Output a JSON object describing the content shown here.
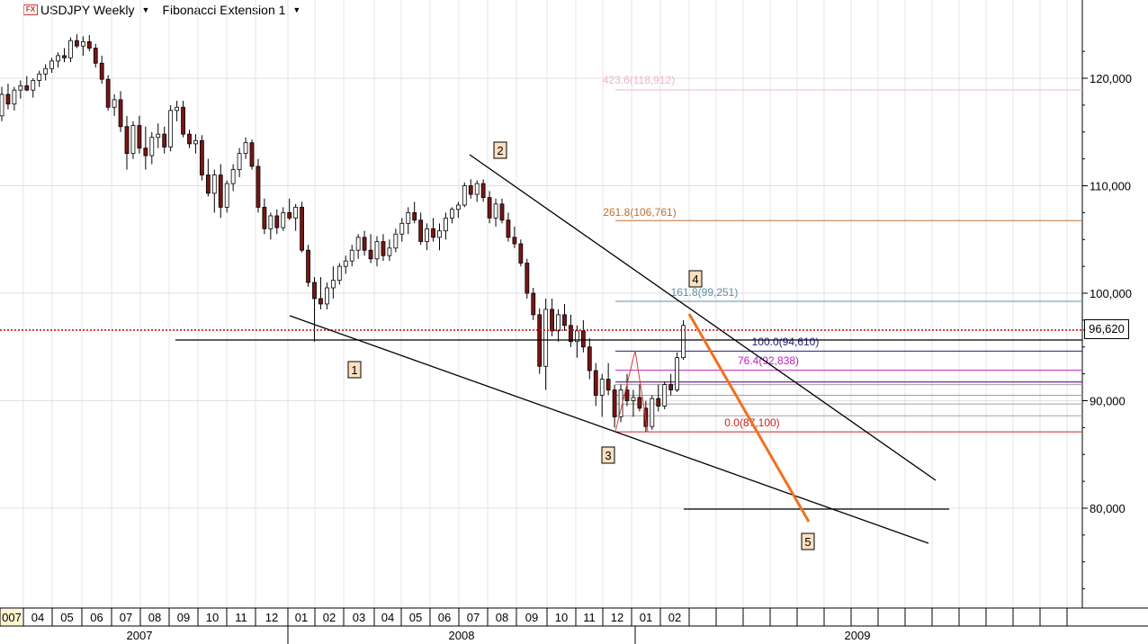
{
  "header": {
    "symbol_icon": "fx-icon",
    "symbol": "USDJPY Weekly",
    "indicator": "Fibonacci Extension 1"
  },
  "current_price": "96,620",
  "chart_data": {
    "type": "candlestick",
    "y_axis": {
      "ticks": [
        "120,000",
        "110,000",
        "100,000",
        "90,000",
        "80,000"
      ],
      "tick_values": [
        120,
        110,
        100,
        90,
        80
      ],
      "ylim": [
        70,
        125
      ]
    },
    "x_axis": {
      "months": [
        "007",
        "04",
        "05",
        "06",
        "07",
        "08",
        "09",
        "10",
        "11",
        "12",
        "01",
        "02",
        "03",
        "04",
        "05",
        "06",
        "07",
        "08",
        "09",
        "10",
        "11",
        "12",
        "01",
        "02"
      ],
      "years": [
        "2007",
        "2008",
        "2009"
      ]
    },
    "fib_levels": [
      {
        "label": "423.6(118,912)",
        "value": 118.912,
        "color": "#f4b4c8"
      },
      {
        "label": "261.8(106,761)",
        "value": 106.761,
        "color": "#c07030"
      },
      {
        "label": "161.8(99,251)",
        "value": 99.251,
        "color": "#6090a0"
      },
      {
        "label": "100.0(94,610)",
        "value": 94.61,
        "color": "#202080"
      },
      {
        "label": "76.4(92,838)",
        "value": 92.838,
        "color": "#c020c0"
      },
      {
        "label": "0.0(87,100)",
        "value": 87.1,
        "color": "#d02020"
      }
    ],
    "wave_labels": [
      "1",
      "2",
      "3",
      "4",
      "5"
    ],
    "candles": [
      [
        116.5,
        119.2,
        116.0,
        118.5
      ],
      [
        118.5,
        119.5,
        117.1,
        117.6
      ],
      [
        117.6,
        119.2,
        117.0,
        118.9
      ],
      [
        118.9,
        119.8,
        118.1,
        119.3
      ],
      [
        119.3,
        120.2,
        118.8,
        118.9
      ],
      [
        118.9,
        120.0,
        118.2,
        119.8
      ],
      [
        119.8,
        120.7,
        119.2,
        120.4
      ],
      [
        120.4,
        121.3,
        119.8,
        120.9
      ],
      [
        120.9,
        121.9,
        120.5,
        121.6
      ],
      [
        121.6,
        122.4,
        121.0,
        122.1
      ],
      [
        122.1,
        122.8,
        121.5,
        121.9
      ],
      [
        121.9,
        123.8,
        121.5,
        123.5
      ],
      [
        123.5,
        124.1,
        122.8,
        123.0
      ],
      [
        123.0,
        123.9,
        122.1,
        123.4
      ],
      [
        123.4,
        124.0,
        122.5,
        122.8
      ],
      [
        122.8,
        123.2,
        121.0,
        121.4
      ],
      [
        121.4,
        122.1,
        119.5,
        119.9
      ],
      [
        119.9,
        120.3,
        117.0,
        117.3
      ],
      [
        117.3,
        118.5,
        116.5,
        118.0
      ],
      [
        118.0,
        118.8,
        115.0,
        115.5
      ],
      [
        115.5,
        116.5,
        111.5,
        113.0
      ],
      [
        113.0,
        116.0,
        112.5,
        115.6
      ],
      [
        115.6,
        116.5,
        113.0,
        113.5
      ],
      [
        113.5,
        115.5,
        111.5,
        112.8
      ],
      [
        112.8,
        115.0,
        112.0,
        114.5
      ],
      [
        114.5,
        115.8,
        113.5,
        114.8
      ],
      [
        114.8,
        115.5,
        113.0,
        113.6
      ],
      [
        113.6,
        117.5,
        113.2,
        117.0
      ],
      [
        117.0,
        117.9,
        116.0,
        117.3
      ],
      [
        117.3,
        117.9,
        114.5,
        114.8
      ],
      [
        114.8,
        115.2,
        113.5,
        113.9
      ],
      [
        113.9,
        114.8,
        113.0,
        114.2
      ],
      [
        114.2,
        114.7,
        110.5,
        111.0
      ],
      [
        111.0,
        112.5,
        109.0,
        109.3
      ],
      [
        109.3,
        111.5,
        107.5,
        111.0
      ],
      [
        111.0,
        112.0,
        107.0,
        108.0
      ],
      [
        108.0,
        110.5,
        107.5,
        110.2
      ],
      [
        110.2,
        112.0,
        109.5,
        111.5
      ],
      [
        111.5,
        113.5,
        110.8,
        113.0
      ],
      [
        113.0,
        114.5,
        112.5,
        114.0
      ],
      [
        114.0,
        114.3,
        111.5,
        111.8
      ],
      [
        111.8,
        112.5,
        107.5,
        108.0
      ],
      [
        108.0,
        108.8,
        105.5,
        106.0
      ],
      [
        106.0,
        107.5,
        105.0,
        107.2
      ],
      [
        107.2,
        107.8,
        105.5,
        106.1
      ],
      [
        106.1,
        108.0,
        105.8,
        107.5
      ],
      [
        107.5,
        108.8,
        106.8,
        107.0
      ],
      [
        107.0,
        108.3,
        105.8,
        108.0
      ],
      [
        108.0,
        108.5,
        103.8,
        104.0
      ],
      [
        104.0,
        104.5,
        100.6,
        101.0
      ],
      [
        101.0,
        101.5,
        95.5,
        99.5
      ],
      [
        99.5,
        101.5,
        98.5,
        99.0
      ],
      [
        99.0,
        101.0,
        98.5,
        100.5
      ],
      [
        100.5,
        102.5,
        99.5,
        101.2
      ],
      [
        101.2,
        102.8,
        100.8,
        102.5
      ],
      [
        102.5,
        103.5,
        101.8,
        103.0
      ],
      [
        103.0,
        104.5,
        102.5,
        104.0
      ],
      [
        104.0,
        105.5,
        103.2,
        105.2
      ],
      [
        105.2,
        105.8,
        103.5,
        104.0
      ],
      [
        104.0,
        105.5,
        102.8,
        103.2
      ],
      [
        103.2,
        105.3,
        102.5,
        104.8
      ],
      [
        104.8,
        105.5,
        103.0,
        103.5
      ],
      [
        103.5,
        105.0,
        103.0,
        104.2
      ],
      [
        104.2,
        106.0,
        103.8,
        105.5
      ],
      [
        105.5,
        107.0,
        104.8,
        106.5
      ],
      [
        106.5,
        108.0,
        105.5,
        107.5
      ],
      [
        107.5,
        108.5,
        106.5,
        106.8
      ],
      [
        106.8,
        107.5,
        104.5,
        104.8
      ],
      [
        104.8,
        106.5,
        104.0,
        106.0
      ],
      [
        106.0,
        107.0,
        104.8,
        105.2
      ],
      [
        105.2,
        106.5,
        104.0,
        105.8
      ],
      [
        105.8,
        107.5,
        105.0,
        107.0
      ],
      [
        107.0,
        108.0,
        106.5,
        107.8
      ],
      [
        107.8,
        108.5,
        107.0,
        108.2
      ],
      [
        108.2,
        110.3,
        108.0,
        110.0
      ],
      [
        110.0,
        110.6,
        108.8,
        109.2
      ],
      [
        109.2,
        110.5,
        108.5,
        110.2
      ],
      [
        110.2,
        110.6,
        108.5,
        108.9
      ],
      [
        108.9,
        109.5,
        106.5,
        107.0
      ],
      [
        107.0,
        108.8,
        106.2,
        108.3
      ],
      [
        108.3,
        108.8,
        106.5,
        106.8
      ],
      [
        106.8,
        107.5,
        104.8,
        105.2
      ],
      [
        105.2,
        106.2,
        104.2,
        104.6
      ],
      [
        104.6,
        105.0,
        102.5,
        102.8
      ],
      [
        102.8,
        103.2,
        99.5,
        100.0
      ],
      [
        100.0,
        100.5,
        97.5,
        98.0
      ],
      [
        98.0,
        98.6,
        92.5,
        93.2
      ],
      [
        93.2,
        99.5,
        91.0,
        98.5
      ],
      [
        98.5,
        99.5,
        96.0,
        96.5
      ],
      [
        96.5,
        98.5,
        95.5,
        98.0
      ],
      [
        98.0,
        99.0,
        96.5,
        97.0
      ],
      [
        97.0,
        98.0,
        95.0,
        95.5
      ],
      [
        95.5,
        97.0,
        94.0,
        96.5
      ],
      [
        96.5,
        97.5,
        94.5,
        95.0
      ],
      [
        95.0,
        95.8,
        92.0,
        92.8
      ],
      [
        92.8,
        93.5,
        89.5,
        90.5
      ],
      [
        90.5,
        92.5,
        88.5,
        92.0
      ],
      [
        92.0,
        93.5,
        90.5,
        91.0
      ],
      [
        91.0,
        91.5,
        87.5,
        88.5
      ],
      [
        88.5,
        91.5,
        88.0,
        91.0
      ],
      [
        91.0,
        92.5,
        89.5,
        90.0
      ],
      [
        90.0,
        91.0,
        88.5,
        90.3
      ],
      [
        90.3,
        91.5,
        89.0,
        89.3
      ],
      [
        89.3,
        90.0,
        87.1,
        87.6
      ],
      [
        87.6,
        90.5,
        87.3,
        90.2
      ],
      [
        90.2,
        91.5,
        89.0,
        89.5
      ],
      [
        89.5,
        91.8,
        89.2,
        91.5
      ],
      [
        91.5,
        92.5,
        90.5,
        91.0
      ],
      [
        91.0,
        94.5,
        90.8,
        94.0
      ],
      [
        94.0,
        97.5,
        93.8,
        97.0
      ]
    ]
  }
}
